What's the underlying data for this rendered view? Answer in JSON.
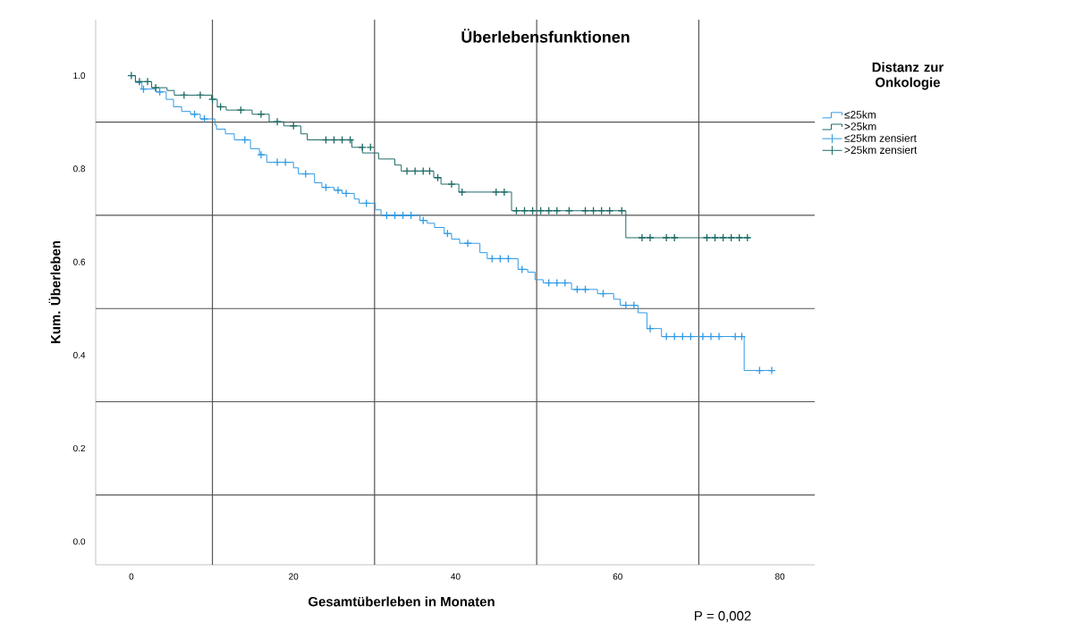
{
  "chart_data": {
    "type": "step",
    "title": "Überlebensfunktionen",
    "xlabel": "Gesamtüberleben in Monaten",
    "ylabel": "Kum. Überleben",
    "legend_title": "Distanz zur Onkologie",
    "annotations": [
      "P = 0,002"
    ],
    "xlim": [
      -4.4,
      84.3
    ],
    "ylim": [
      -0.05,
      1.12
    ],
    "xticks": [
      0,
      20,
      40,
      60,
      80
    ],
    "yticks": [
      {
        "value": 0,
        "label": "0.0"
      },
      {
        "value": 0.2,
        "label": "0.2"
      },
      {
        "value": 0.4,
        "label": "0.4"
      },
      {
        "value": 0.6,
        "label": "0.6"
      },
      {
        "value": 0.8,
        "label": "0.8"
      },
      {
        "value": 1,
        "label": "1.0"
      }
    ],
    "grid": false,
    "legend": "top right",
    "line_style": "solid",
    "ref_lines": [
      {
        "axis": "x",
        "value": 10,
        "color": "#555555"
      },
      {
        "axis": "x",
        "value": 30,
        "color": "#555555"
      },
      {
        "axis": "x",
        "value": 50,
        "color": "#555555"
      },
      {
        "axis": "x",
        "value": 70,
        "color": "#555555"
      },
      {
        "axis": "y",
        "value": 0.1,
        "color": "#555555"
      },
      {
        "axis": "y",
        "value": 0.3,
        "color": "#555555"
      },
      {
        "axis": "y",
        "value": 0.5,
        "color": "#555555"
      },
      {
        "axis": "y",
        "value": 0.7,
        "color": "#555555"
      },
      {
        "axis": "y",
        "value": 0.9,
        "color": "#555555"
      }
    ],
    "series": [
      {
        "name": "≤25km",
        "type": "step",
        "color": "#2f9ae4",
        "marker": "none",
        "x": [
          0,
          0.5,
          1.3,
          3,
          4.3,
          5.2,
          6.2,
          7.3,
          8.5,
          10.3,
          10.5,
          11.6,
          12.7,
          14.7,
          15.8,
          16.7,
          20,
          20.6,
          22.6,
          23.5,
          25,
          26,
          27.5,
          28.1,
          30.1,
          30.8,
          35.6,
          36.5,
          37.4,
          38.6,
          39.5,
          40.5,
          43,
          43.9,
          47.7,
          48.9,
          49.8,
          50.8,
          54.3,
          57.5,
          59.5,
          60.3,
          62.5,
          63.6,
          65.4,
          75.6,
          79
        ],
        "values": [
          1.0,
          0.985,
          0.971,
          0.965,
          0.949,
          0.933,
          0.923,
          0.917,
          0.907,
          0.894,
          0.885,
          0.875,
          0.862,
          0.843,
          0.83,
          0.814,
          0.802,
          0.789,
          0.77,
          0.76,
          0.754,
          0.747,
          0.735,
          0.726,
          0.712,
          0.7,
          0.689,
          0.683,
          0.674,
          0.661,
          0.649,
          0.64,
          0.62,
          0.607,
          0.584,
          0.578,
          0.562,
          0.555,
          0.541,
          0.532,
          0.52,
          0.507,
          0.491,
          0.457,
          0.44,
          0.367,
          0.367
        ]
      },
      {
        "name": ">25km",
        "type": "step",
        "color": "#1d6b66",
        "marker": "none",
        "x": [
          0,
          0.5,
          2.5,
          4.4,
          5.3,
          9.9,
          10.6,
          11.7,
          14.9,
          17,
          18.8,
          20.9,
          21.7,
          27.2,
          28.5,
          30.5,
          32.5,
          33.3,
          37.3,
          38.2,
          40.4,
          46.9,
          61,
          76.3
        ],
        "values": [
          1.0,
          0.987,
          0.974,
          0.968,
          0.958,
          0.949,
          0.933,
          0.926,
          0.917,
          0.901,
          0.892,
          0.875,
          0.862,
          0.846,
          0.834,
          0.821,
          0.808,
          0.795,
          0.781,
          0.767,
          0.75,
          0.71,
          0.652,
          0.652
        ]
      },
      {
        "name": "≤25km zensiert",
        "type": "scatter",
        "color": "#2f9ae4",
        "marker": "cross",
        "x": [
          1.5,
          3.5,
          7.8,
          9,
          14,
          16,
          18,
          19,
          21.5,
          24,
          25.5,
          26.5,
          29,
          31.5,
          32.5,
          33.5,
          34.5,
          36,
          39,
          41.5,
          44.5,
          45.5,
          46.5,
          48.2,
          51.5,
          52.5,
          53.5,
          55,
          56,
          58.2,
          61,
          62,
          64,
          66,
          67,
          68,
          69,
          70.5,
          71.5,
          72.5,
          74.5,
          75.3,
          77.5,
          79
        ],
        "values": [
          0.971,
          0.965,
          0.917,
          0.907,
          0.862,
          0.83,
          0.814,
          0.814,
          0.789,
          0.76,
          0.754,
          0.747,
          0.726,
          0.7,
          0.7,
          0.7,
          0.7,
          0.689,
          0.661,
          0.64,
          0.607,
          0.607,
          0.607,
          0.584,
          0.555,
          0.555,
          0.555,
          0.541,
          0.541,
          0.532,
          0.507,
          0.507,
          0.457,
          0.44,
          0.44,
          0.44,
          0.44,
          0.44,
          0.44,
          0.44,
          0.44,
          0.44,
          0.367,
          0.367
        ]
      },
      {
        "name": ">25km zensiert",
        "type": "scatter",
        "color": "#1d6b66",
        "marker": "cross",
        "x": [
          0,
          1,
          2,
          3,
          6.5,
          8.5,
          10,
          11,
          13.5,
          16,
          18,
          20,
          24,
          25,
          26,
          27,
          28.5,
          29.5,
          34,
          35,
          36,
          36.8,
          37.8,
          39.5,
          40.8,
          45,
          46,
          47.5,
          48.5,
          49.5,
          50.5,
          51.5,
          52.5,
          54,
          56,
          57,
          58,
          59,
          60.5,
          63,
          64,
          66,
          67,
          71,
          72,
          73,
          74,
          75,
          76
        ],
        "values": [
          1.0,
          0.987,
          0.987,
          0.974,
          0.958,
          0.958,
          0.949,
          0.933,
          0.926,
          0.917,
          0.901,
          0.892,
          0.862,
          0.862,
          0.862,
          0.862,
          0.846,
          0.846,
          0.795,
          0.795,
          0.795,
          0.795,
          0.781,
          0.767,
          0.75,
          0.75,
          0.75,
          0.71,
          0.71,
          0.71,
          0.71,
          0.71,
          0.71,
          0.71,
          0.71,
          0.71,
          0.71,
          0.71,
          0.71,
          0.652,
          0.652,
          0.652,
          0.652,
          0.652,
          0.652,
          0.652,
          0.652,
          0.652,
          0.652
        ]
      }
    ]
  }
}
